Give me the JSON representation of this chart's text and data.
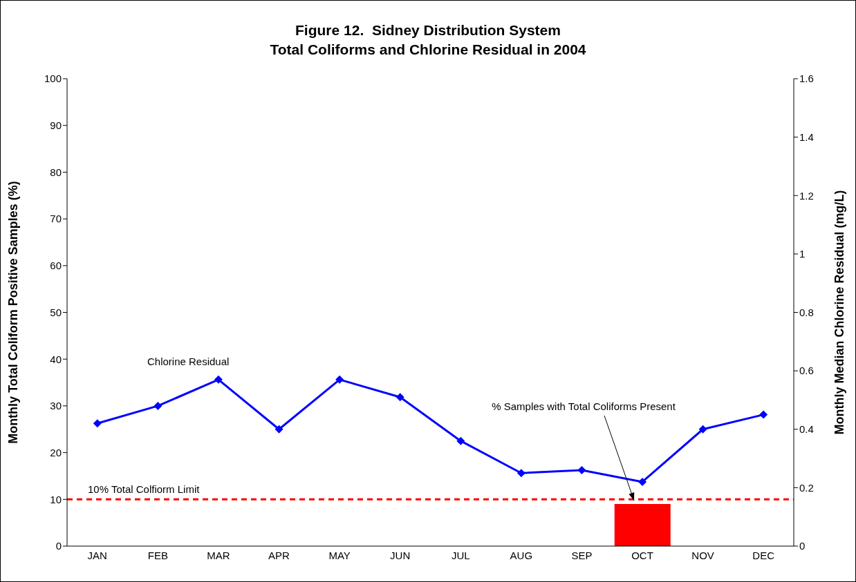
{
  "chart_data": {
    "type": "bar",
    "title": "Figure 12.  Sidney Distribution System\nTotal Coliforms and Chlorine Residual in 2004",
    "ylabel": "Monthly Total Coliform Positive Samples (%)",
    "y2label": "Monthly Median Chlorine Residual (mg/L)",
    "categories": [
      "JAN",
      "FEB",
      "MAR",
      "APR",
      "MAY",
      "JUN",
      "JUL",
      "AUG",
      "SEP",
      "OCT",
      "NOV",
      "DEC"
    ],
    "series": [
      {
        "name": "% Samples with Total Coliforms Present",
        "color": "#ff0000",
        "values": [
          0,
          0,
          0,
          0,
          0,
          0,
          0,
          0,
          0,
          9,
          0,
          0
        ]
      },
      {
        "type": "line",
        "axis": "y2",
        "name": "Chlorine Residual",
        "color": "#0000ff",
        "marker": "diamond",
        "line_style": "solid",
        "values": [
          0.42,
          0.48,
          0.57,
          0.4,
          0.57,
          0.51,
          0.36,
          0.25,
          0.26,
          0.22,
          0.4,
          0.45
        ]
      }
    ],
    "ylim": [
      0,
      100
    ],
    "yticks": [
      0,
      10,
      20,
      30,
      40,
      50,
      60,
      70,
      80,
      90,
      100
    ],
    "y2lim": [
      0,
      1.6
    ],
    "y2ticks": [
      0,
      0.2,
      0.4,
      0.6,
      0.8,
      1,
      1.2,
      1.4,
      1.6
    ],
    "ref_lines": [
      {
        "axis": "y",
        "value": 10,
        "label": "10% Total Colfiorm Limit",
        "color": "#ff0000",
        "line_style": "dashed"
      }
    ]
  }
}
